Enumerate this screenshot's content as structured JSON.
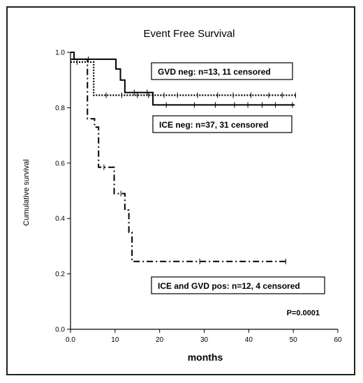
{
  "chart_data": {
    "type": "line",
    "title": "Event Free Survival",
    "xlabel": "months",
    "ylabel": "Cumulative survival",
    "xlim": [
      0,
      60
    ],
    "ylim": [
      0,
      1
    ],
    "xticks": [
      "0.0",
      "10",
      "20",
      "30",
      "40",
      "50",
      "60"
    ],
    "yticks": [
      "0.0",
      "0.2",
      "0.4",
      "0.6",
      "0.8",
      "1.0"
    ],
    "grid": false,
    "series": [
      {
        "name": "GVD neg: n=13, 11 censored",
        "style": "solid",
        "steps": [
          [
            0,
            1.0
          ],
          [
            0.8,
            0.975
          ],
          [
            10.2,
            0.94
          ],
          [
            11.2,
            0.9
          ],
          [
            12.2,
            0.855
          ],
          [
            18.5,
            0.81
          ],
          [
            50.3,
            0.81
          ]
        ],
        "censor_x": [
          4.0,
          14.3,
          17.2,
          21.5,
          27.8,
          32.5,
          36.8,
          39.8,
          43.0,
          46.0,
          49.8
        ]
      },
      {
        "name": "ICE neg: n=37, 31 censored",
        "style": "dotted",
        "steps": [
          [
            0,
            0.965
          ],
          [
            5.2,
            0.845
          ],
          [
            50.5,
            0.845
          ]
        ],
        "censor_x": [
          1.5,
          8.0,
          11.5,
          15.0,
          17.5,
          21.0,
          24.0,
          28.5,
          33.0,
          36.5,
          40.5,
          44.5,
          47.5,
          50.5
        ]
      },
      {
        "name": "ICE and GVD pos: n=12, 4 censored",
        "style": "dashdot",
        "steps": [
          [
            0,
            0.975
          ],
          [
            3.8,
            0.76
          ],
          [
            5.4,
            0.73
          ],
          [
            6.3,
            0.585
          ],
          [
            9.8,
            0.49
          ],
          [
            12.2,
            0.43
          ],
          [
            13.1,
            0.35
          ],
          [
            13.8,
            0.245
          ],
          [
            48.3,
            0.245
          ]
        ],
        "censor_x": [
          7.5,
          11.3,
          29.0,
          48.3
        ]
      }
    ],
    "annotations": [
      "P=0.0001"
    ]
  },
  "labels": {
    "gvd": "GVD neg: n=13, 11 censored",
    "ice": "ICE neg: n=37, 31 censored",
    "pos": "ICE and GVD pos: n=12, 4 censored",
    "pvalue": "P=0.0001"
  }
}
